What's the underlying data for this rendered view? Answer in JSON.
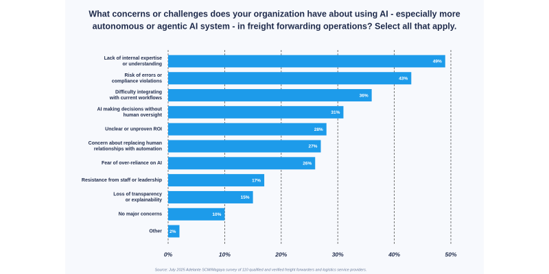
{
  "chart_data": {
    "type": "hbar",
    "title": [
      "What concerns or challenges does your organization have about using AI - especially more",
      "autonomous or agentic AI system - in freight forwarding operations? Select all that apply."
    ],
    "categories": [
      [
        "Lack of internal expertise",
        "or understanding"
      ],
      [
        "Risk of errors or",
        "compliance violations"
      ],
      [
        "Difficulty integrating",
        "with current workflows"
      ],
      [
        "AI making decisions without",
        "human oversight"
      ],
      [
        "Unclear or unproven ROI"
      ],
      [
        "Concern about replacing human",
        "relationships with automation"
      ],
      [
        "Fear of over-reliance on AI"
      ],
      [
        "Resistance from staff or leadership"
      ],
      [
        "Loss of transparency",
        "or explainability"
      ],
      [
        "No major concerns"
      ],
      [
        "Other"
      ]
    ],
    "values": [
      49,
      43,
      36,
      31,
      28,
      27,
      26,
      17,
      15,
      10,
      2
    ],
    "value_labels": [
      "49%",
      "43%",
      "36%",
      "31%",
      "28%",
      "27%",
      "26%",
      "17%",
      "15%",
      "10%",
      "2%"
    ],
    "color": "#1d9bea",
    "xlim": [
      0,
      50
    ],
    "xticks": [
      {
        "value": 0,
        "label": "0%"
      },
      {
        "value": 10,
        "label": "10%"
      },
      {
        "value": 20,
        "label": "20%"
      },
      {
        "value": 30,
        "label": "30%"
      },
      {
        "value": 40,
        "label": "40%"
      },
      {
        "value": 50,
        "label": "50%"
      }
    ],
    "grid": true,
    "source": "Source: July 2025 Adelante SCM/Magaya survey of 110 qualified and verified freight forwarders and logistics service providers."
  }
}
